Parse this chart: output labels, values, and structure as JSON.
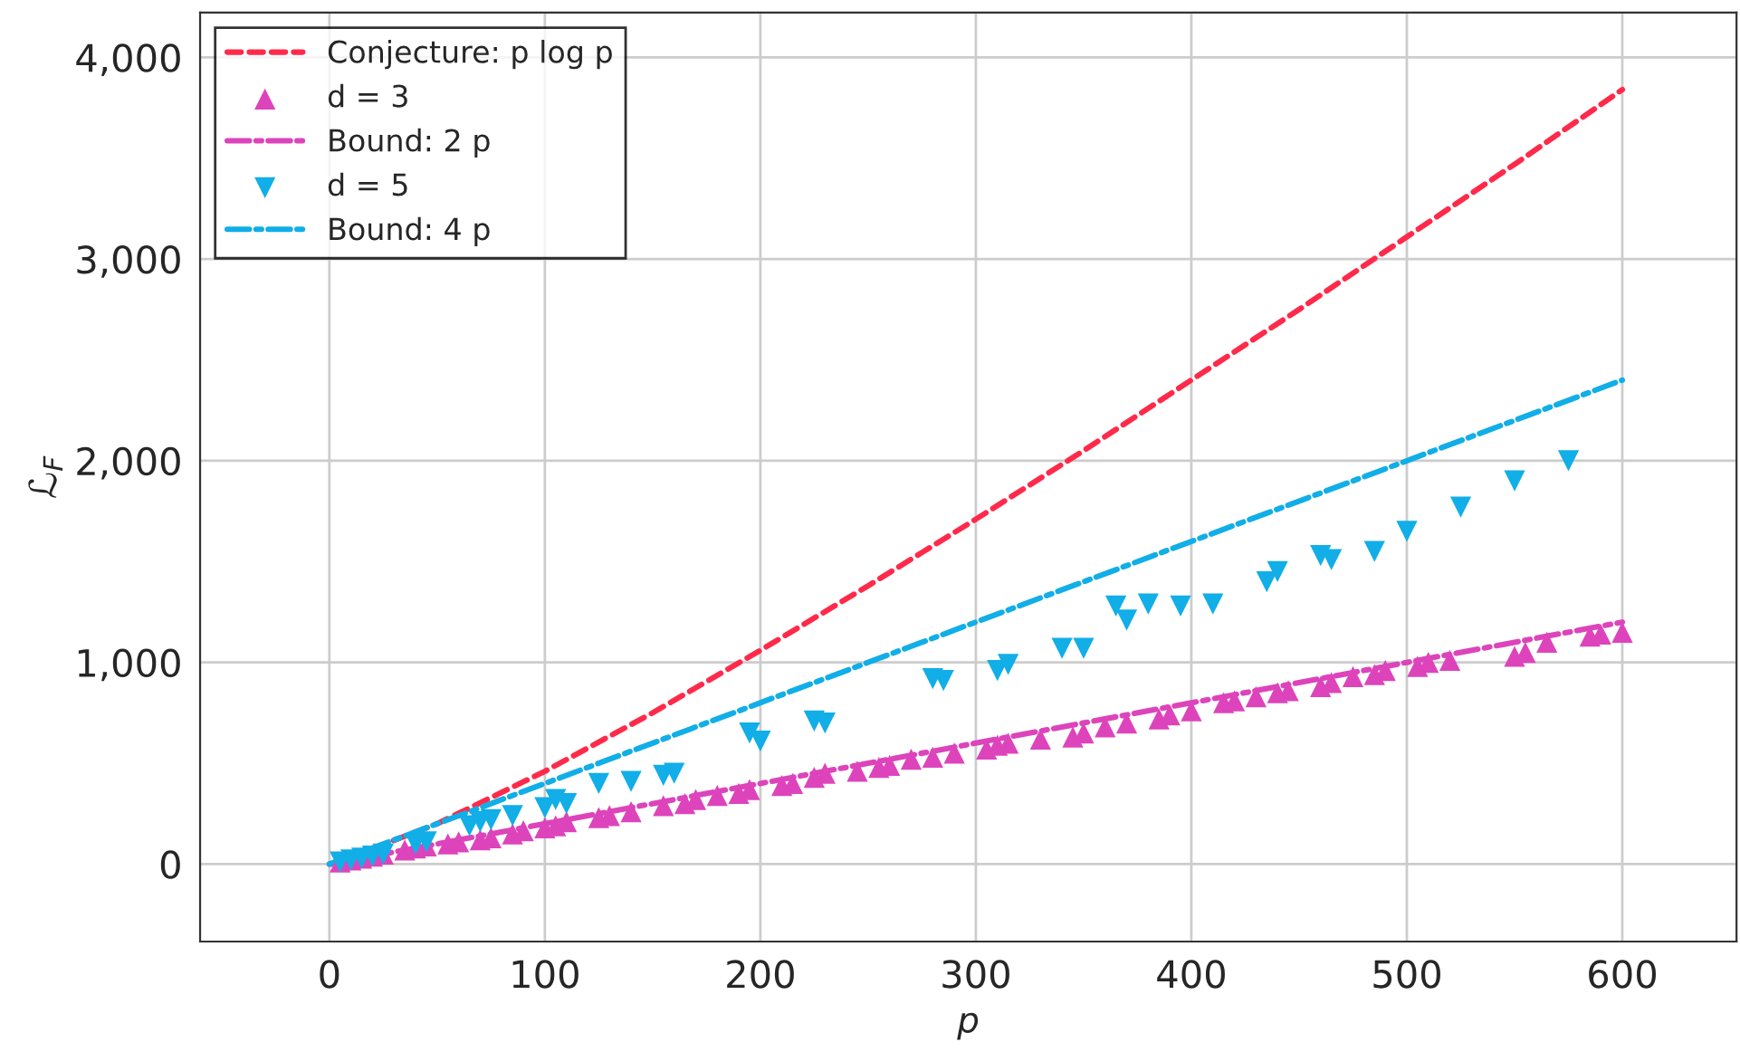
{
  "chart_data": {
    "type": "line",
    "xlabel": "p",
    "ylabel": "ℒ$_{F}$",
    "xlim": [
      -60,
      653
    ],
    "ylim": [
      -384,
      4222
    ],
    "xticks": [
      0,
      100,
      200,
      300,
      400,
      500,
      600
    ],
    "yticks": [
      {
        "value": 0,
        "label": "0"
      },
      {
        "value": 1000,
        "label": "1,000"
      },
      {
        "value": 2000,
        "label": "2,000"
      },
      {
        "value": 3000,
        "label": "3,000"
      },
      {
        "value": 4000,
        "label": "4,000"
      }
    ],
    "grid": true,
    "legend": "top left",
    "series": [
      {
        "name": "Conjecture: p log p",
        "color": "#ff2a4a",
        "line_style": "dashed",
        "marker": "none",
        "x": [
          1,
          50,
          100,
          150,
          200,
          250,
          300,
          350,
          400,
          450,
          500,
          550,
          600
        ],
        "values": [
          0,
          200,
          460,
          750,
          1060,
          1380,
          1710,
          2050,
          2400,
          2750,
          3110,
          3470,
          3840
        ]
      },
      {
        "name": "d = 3",
        "type": "scatter",
        "color": "#dd44bb",
        "marker": "triangle",
        "x": [
          5,
          10,
          15,
          20,
          25,
          35,
          40,
          45,
          55,
          60,
          70,
          75,
          85,
          90,
          100,
          105,
          110,
          125,
          130,
          140,
          155,
          165,
          170,
          180,
          190,
          195,
          210,
          215,
          225,
          230,
          245,
          255,
          260,
          270,
          280,
          290,
          305,
          310,
          315,
          330,
          345,
          350,
          360,
          370,
          385,
          390,
          400,
          415,
          420,
          430,
          440,
          445,
          460,
          465,
          475,
          485,
          490,
          505,
          510,
          520,
          550,
          555,
          565,
          585,
          590,
          600
        ],
        "values": [
          10,
          20,
          30,
          40,
          50,
          70,
          80,
          90,
          100,
          110,
          120,
          130,
          150,
          165,
          180,
          190,
          210,
          230,
          240,
          260,
          290,
          300,
          320,
          340,
          350,
          370,
          390,
          400,
          430,
          450,
          460,
          480,
          490,
          520,
          530,
          550,
          570,
          590,
          600,
          620,
          630,
          650,
          680,
          700,
          720,
          740,
          760,
          800,
          810,
          830,
          850,
          860,
          880,
          900,
          930,
          940,
          960,
          980,
          1000,
          1010,
          1030,
          1050,
          1100,
          1130,
          1140,
          1150
        ]
      },
      {
        "name": "Bound: 2 p",
        "color": "#dd44bb",
        "line_style": "dashdot",
        "marker": "none",
        "x": [
          0,
          600
        ],
        "values": [
          0,
          1200
        ]
      },
      {
        "name": "d = 5",
        "type": "scatter",
        "color": "#11aee8",
        "marker": "triangle_down",
        "x": [
          5,
          10,
          15,
          20,
          25,
          40,
          45,
          65,
          70,
          75,
          85,
          100,
          105,
          110,
          125,
          140,
          155,
          160,
          195,
          200,
          225,
          230,
          280,
          285,
          310,
          315,
          340,
          350,
          365,
          370,
          380,
          395,
          410,
          435,
          440,
          460,
          465,
          485,
          500,
          525,
          550,
          575
        ],
        "values": [
          10,
          20,
          30,
          40,
          50,
          100,
          110,
          190,
          210,
          220,
          240,
          280,
          320,
          300,
          400,
          410,
          440,
          450,
          650,
          610,
          710,
          700,
          920,
          910,
          960,
          990,
          1070,
          1070,
          1280,
          1210,
          1290,
          1280,
          1290,
          1400,
          1450,
          1530,
          1510,
          1550,
          1650,
          1770,
          1900,
          2000
        ]
      },
      {
        "name": "Bound: 4 p",
        "color": "#11aee8",
        "line_style": "dashdot",
        "marker": "none",
        "x": [
          0,
          600
        ],
        "values": [
          0,
          2400
        ]
      }
    ]
  }
}
